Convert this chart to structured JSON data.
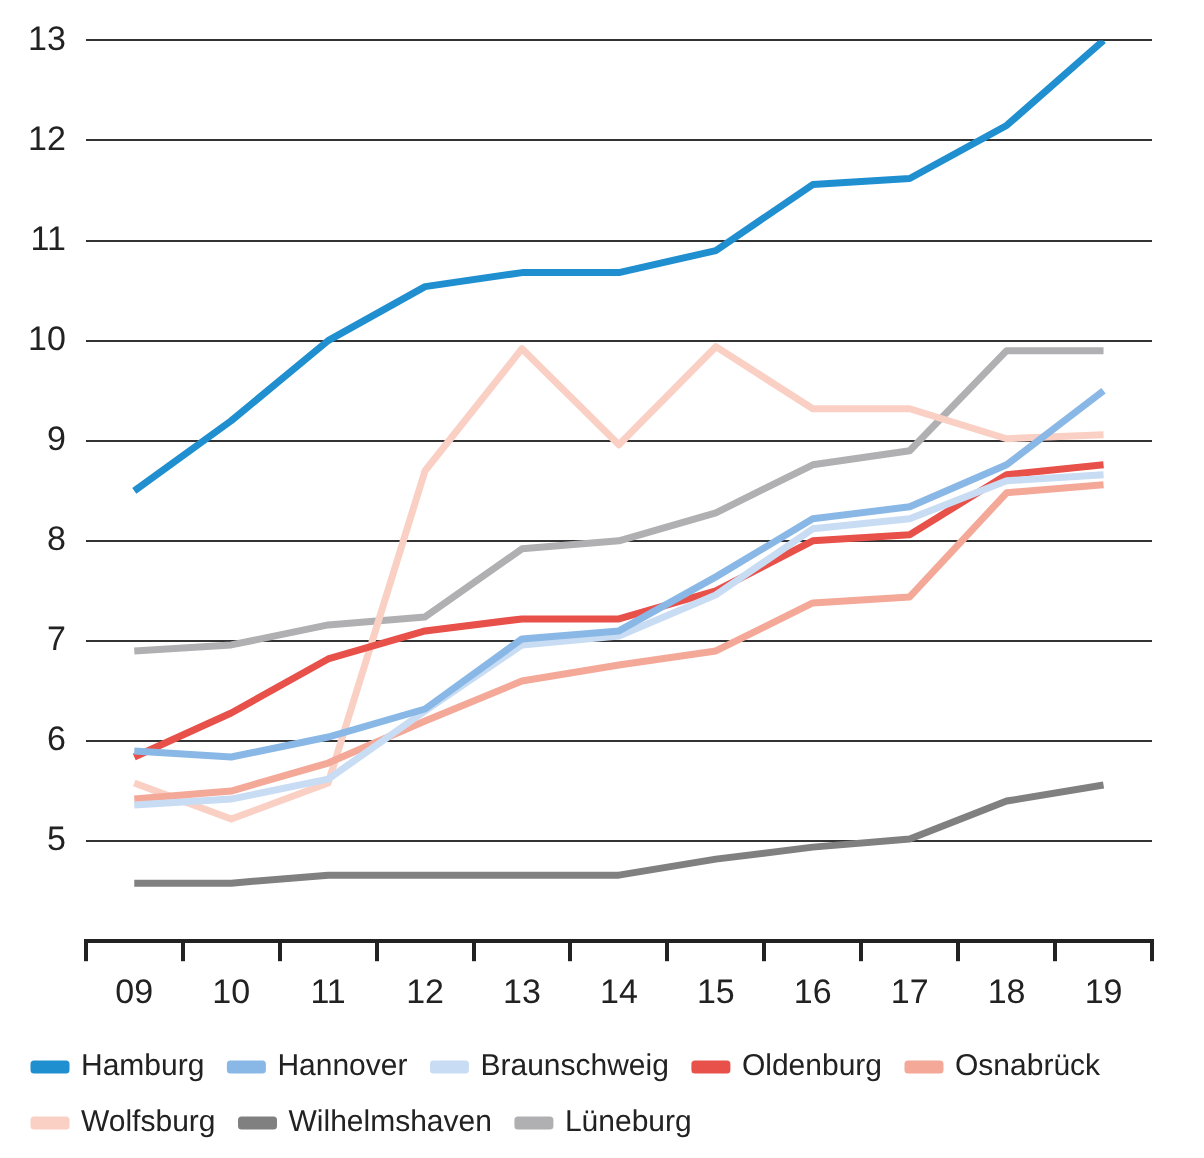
{
  "chart_data": {
    "type": "line",
    "categories": [
      "09",
      "10",
      "11",
      "12",
      "13",
      "14",
      "15",
      "16",
      "17",
      "18",
      "19"
    ],
    "ylim": [
      4,
      13
    ],
    "yticks": [
      5,
      6,
      7,
      8,
      9,
      10,
      11,
      12,
      13
    ],
    "grid": "y",
    "legend": "bottom",
    "marker": "none",
    "series": [
      {
        "name": "Hamburg",
        "color": "#1f8fd0",
        "values": [
          8.5,
          9.2,
          10.0,
          10.54,
          10.68,
          10.68,
          10.9,
          11.56,
          11.62,
          12.15,
          13.0
        ]
      },
      {
        "name": "Hannover",
        "color": "#8ab8e6",
        "values": [
          5.9,
          5.84,
          6.04,
          6.32,
          7.02,
          7.1,
          7.64,
          8.22,
          8.34,
          8.76,
          9.5
        ]
      },
      {
        "name": "Braunschweig",
        "color": "#c8dcf4",
        "values": [
          5.36,
          5.42,
          5.62,
          6.3,
          6.96,
          7.05,
          7.46,
          8.12,
          8.22,
          8.6,
          8.66
        ]
      },
      {
        "name": "Oldenburg",
        "color": "#e8504a",
        "values": [
          5.84,
          6.28,
          6.82,
          7.1,
          7.22,
          7.22,
          7.5,
          8.0,
          8.06,
          8.66,
          8.76
        ]
      },
      {
        "name": "Osnabrück",
        "color": "#f4a898",
        "values": [
          5.42,
          5.5,
          5.78,
          6.2,
          6.6,
          6.76,
          6.9,
          7.38,
          7.44,
          8.48,
          8.56
        ]
      },
      {
        "name": "Wolfsburg",
        "color": "#fbd0c4",
        "values": [
          5.58,
          5.22,
          5.58,
          8.7,
          9.92,
          8.96,
          9.94,
          9.32,
          9.32,
          9.02,
          9.06
        ]
      },
      {
        "name": "Wilhelmshaven",
        "color": "#808080",
        "values": [
          4.58,
          4.58,
          4.66,
          4.66,
          4.66,
          4.66,
          4.82,
          4.94,
          5.02,
          5.4,
          5.56
        ]
      },
      {
        "name": "Lüneburg",
        "color": "#b0b0b2",
        "values": [
          6.9,
          6.96,
          7.16,
          7.24,
          7.92,
          8.0,
          8.28,
          8.76,
          8.9,
          9.9,
          9.9
        ]
      }
    ]
  }
}
